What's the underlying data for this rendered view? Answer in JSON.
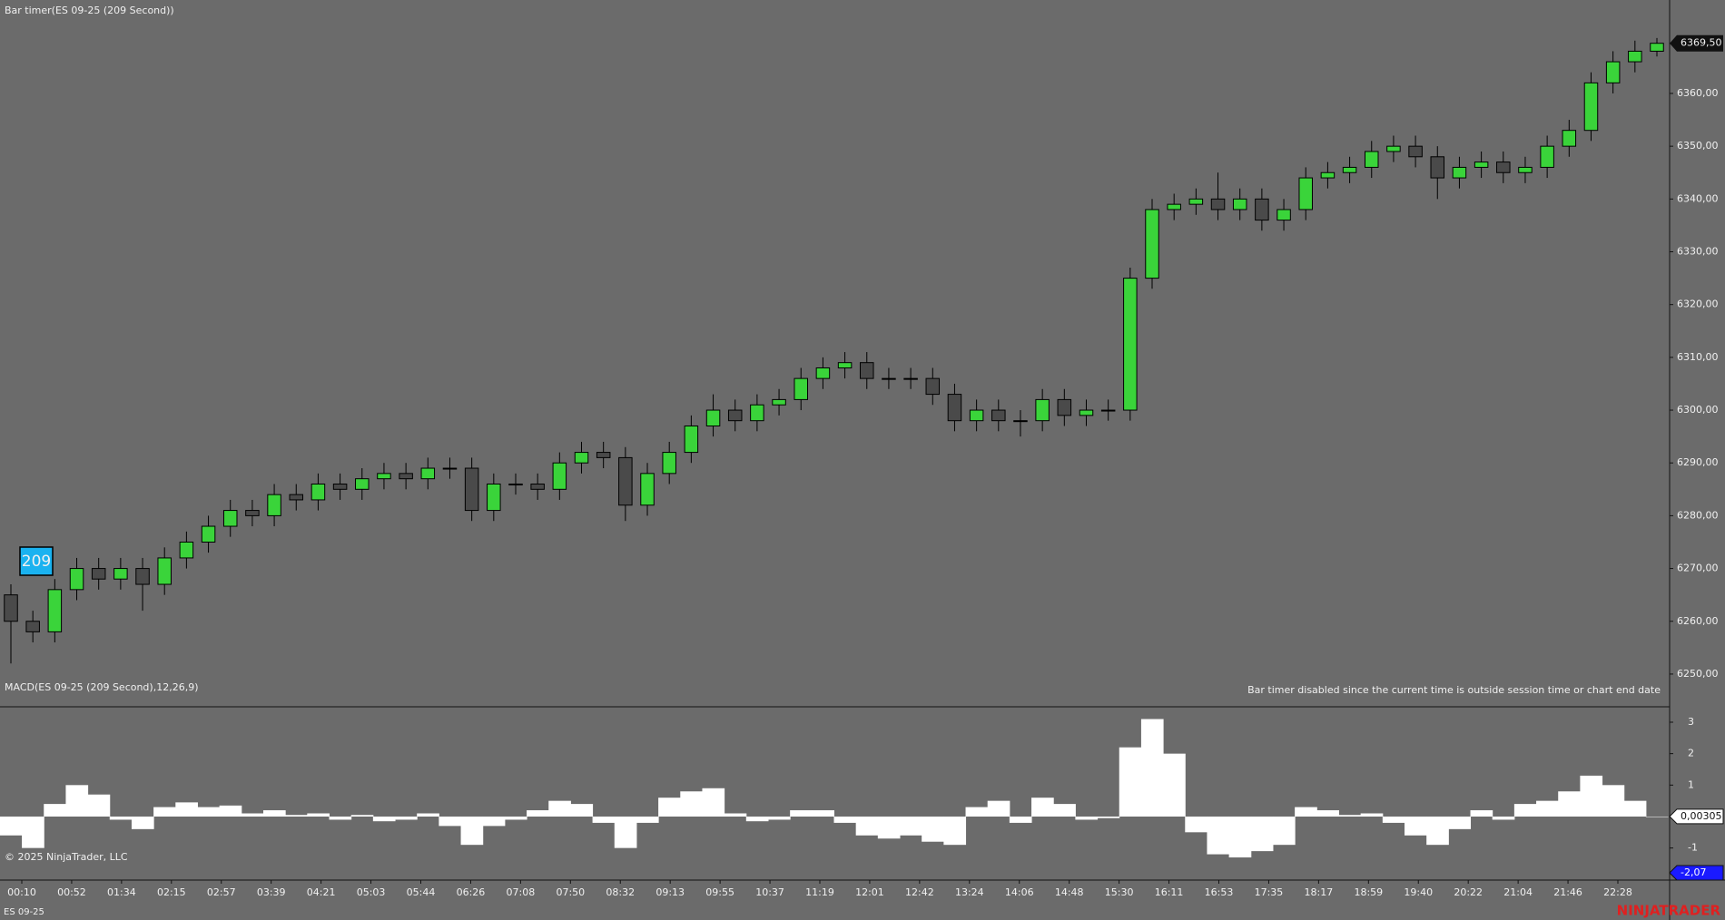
{
  "chart_data": [
    {
      "type": "candlestick",
      "title": "Bar timer(ES 09-25 (209 Second))",
      "timer": "209",
      "notice": "Bar timer disabled since the current time is outside session time or chart end date",
      "up_color": "#3ad43a",
      "down_color": "#4a4a4a",
      "open": [
        6265,
        6260,
        6258,
        6266,
        6270,
        6268,
        6270,
        6267,
        6272,
        6275,
        6278,
        6281,
        6280,
        6284,
        6283,
        6286,
        6285,
        6287,
        6288,
        6287,
        6289,
        6289,
        6281,
        6286,
        6286,
        6285,
        6290,
        6292,
        6291,
        6282,
        6288,
        6292,
        6297,
        6300,
        6298,
        6301,
        6302,
        6306,
        6308,
        6309,
        6306,
        6306,
        6306,
        6303,
        6298,
        6300,
        6298,
        6298,
        6302,
        6299,
        6300,
        6300,
        6325,
        6338,
        6339,
        6340,
        6338,
        6340,
        6336,
        6338,
        6344,
        6345,
        6346,
        6349,
        6350,
        6348,
        6344,
        6346,
        6347,
        6345,
        6346,
        6350,
        6353,
        6362,
        6366,
        6368
      ],
      "high": [
        6267,
        6262,
        6268,
        6272,
        6272,
        6272,
        6272,
        6274,
        6277,
        6280,
        6283,
        6283,
        6286,
        6286,
        6288,
        6288,
        6289,
        6290,
        6290,
        6291,
        6291,
        6291,
        6288,
        6288,
        6288,
        6292,
        6294,
        6294,
        6293,
        6290,
        6294,
        6299,
        6303,
        6302,
        6303,
        6304,
        6308,
        6310,
        6311,
        6311,
        6308,
        6308,
        6308,
        6305,
        6302,
        6302,
        6300,
        6304,
        6304,
        6302,
        6302,
        6327,
        6340,
        6341,
        6342,
        6345,
        6342,
        6342,
        6340,
        6346,
        6347,
        6348,
        6351,
        6352,
        6352,
        6350,
        6348,
        6349,
        6349,
        6348,
        6352,
        6355,
        6364,
        6368,
        6370,
        6370.5
      ],
      "low": [
        6252,
        6256,
        6256,
        6264,
        6266,
        6266,
        6262,
        6265,
        6270,
        6273,
        6276,
        6278,
        6278,
        6281,
        6281,
        6283,
        6283,
        6285,
        6285,
        6285,
        6287,
        6279,
        6279,
        6284,
        6283,
        6283,
        6288,
        6289,
        6279,
        6280,
        6286,
        6290,
        6295,
        6296,
        6296,
        6299,
        6300,
        6304,
        6306,
        6304,
        6304,
        6304,
        6301,
        6296,
        6296,
        6296,
        6295,
        6296,
        6297,
        6297,
        6298,
        6298,
        6323,
        6336,
        6337,
        6336,
        6336,
        6334,
        6334,
        6336,
        6342,
        6343,
        6344,
        6347,
        6346,
        6340,
        6342,
        6344,
        6343,
        6343,
        6344,
        6348,
        6351,
        6360,
        6364,
        6367
      ],
      "close": [
        6260,
        6258,
        6266,
        6270,
        6268,
        6270,
        6267,
        6272,
        6275,
        6278,
        6281,
        6280,
        6284,
        6283,
        6286,
        6285,
        6287,
        6288,
        6287,
        6289,
        6289,
        6281,
        6286,
        6286,
        6285,
        6290,
        6292,
        6291,
        6282,
        6288,
        6292,
        6297,
        6300,
        6298,
        6301,
        6302,
        6306,
        6308,
        6309,
        6306,
        6306,
        6306,
        6303,
        6298,
        6300,
        6298,
        6298,
        6302,
        6299,
        6300,
        6300,
        6325,
        6338,
        6339,
        6340,
        6338,
        6340,
        6336,
        6338,
        6344,
        6345,
        6346,
        6349,
        6350,
        6348,
        6344,
        6346,
        6347,
        6345,
        6346,
        6350,
        6353,
        6362,
        6366,
        6368,
        6369.5
      ],
      "ylim": [
        6243.8,
        6377.7
      ],
      "yticks": [
        {
          "value": 6250,
          "label": "6250,00"
        },
        {
          "value": 6260,
          "label": "6260,00"
        },
        {
          "value": 6270,
          "label": "6270,00"
        },
        {
          "value": 6280,
          "label": "6280,00"
        },
        {
          "value": 6290,
          "label": "6290,00"
        },
        {
          "value": 6300,
          "label": "6300,00"
        },
        {
          "value": 6310,
          "label": "6310,00"
        },
        {
          "value": 6320,
          "label": "6320,00"
        },
        {
          "value": 6330,
          "label": "6330,00"
        },
        {
          "value": 6340,
          "label": "6340,00"
        },
        {
          "value": 6350,
          "label": "6350,00"
        },
        {
          "value": 6360,
          "label": "6360,00"
        }
      ],
      "last_price": {
        "value": 6369.5,
        "label": "6369,50"
      }
    },
    {
      "type": "histogram",
      "title": "MACD(ES 09-25 (209 Second),12,26,9)",
      "color": "#ffffff",
      "values": [
        -0.6,
        -1.0,
        0.4,
        1.0,
        0.7,
        -0.1,
        -0.4,
        0.3,
        0.45,
        0.3,
        0.35,
        0.1,
        0.2,
        0.05,
        0.1,
        -0.1,
        0.05,
        -0.15,
        -0.1,
        0.1,
        -0.3,
        -0.9,
        -0.3,
        -0.1,
        0.2,
        0.5,
        0.4,
        -0.2,
        -1.0,
        -0.2,
        0.6,
        0.8,
        0.9,
        0.1,
        -0.15,
        -0.1,
        0.2,
        0.2,
        -0.2,
        -0.6,
        -0.7,
        -0.6,
        -0.8,
        -0.9,
        0.3,
        0.5,
        -0.2,
        0.6,
        0.4,
        -0.1,
        -0.05,
        2.2,
        3.1,
        2.0,
        -0.5,
        -1.2,
        -1.3,
        -1.1,
        -0.9,
        0.3,
        0.2,
        0.05,
        0.1,
        -0.2,
        -0.6,
        -0.9,
        -0.4,
        0.2,
        -0.1,
        0.4,
        0.5,
        0.8,
        1.3,
        1.0,
        0.5,
        0.0
      ],
      "ylim": [
        -2.02,
        3.49
      ],
      "yticks": [
        3,
        2,
        1,
        -1
      ],
      "tags": [
        {
          "value": 0.00305,
          "label": "0,00305",
          "color": "#ffffff"
        },
        {
          "value": -2.07,
          "label": "-2,07",
          "color": "#1a1aff"
        }
      ]
    }
  ],
  "xticks": [
    "00:10",
    "00:52",
    "01:34",
    "02:15",
    "02:57",
    "03:39",
    "04:21",
    "05:03",
    "05:44",
    "06:26",
    "07:08",
    "07:50",
    "08:32",
    "09:13",
    "09:55",
    "10:37",
    "11:19",
    "12:01",
    "12:42",
    "13:24",
    "14:06",
    "14:48",
    "15:30",
    "16:11",
    "16:53",
    "17:35",
    "18:17",
    "18:59",
    "19:40",
    "20:22",
    "21:04",
    "21:46",
    "22:28"
  ],
  "copyright": "© 2025 NinjaTrader, LLC",
  "instrument": "ES 09-25",
  "brand": "NINJATRADER"
}
